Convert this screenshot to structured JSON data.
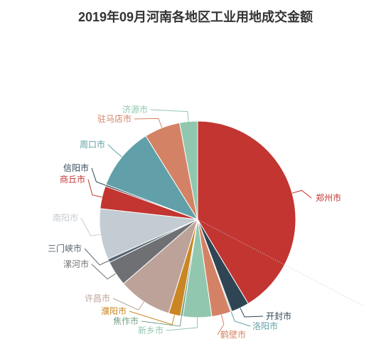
{
  "chart_data": {
    "type": "pie",
    "title": "2019年09月河南各地区工业用地成交金额",
    "start_angle_deg": 90,
    "direction": "clockwise",
    "slices": [
      {
        "name": "郑州市",
        "value": 42.0,
        "color": "#c23531"
      },
      {
        "name": "开封市",
        "value": 3.0,
        "color": "#2f4554"
      },
      {
        "name": "洛阳市",
        "value": 0.2,
        "color": "#61a0a8"
      },
      {
        "name": "鹤壁市",
        "value": 3.2,
        "color": "#d48265"
      },
      {
        "name": "新乡市",
        "value": 4.8,
        "color": "#91c7ae"
      },
      {
        "name": "焦作市",
        "value": 0.4,
        "color": "#749f83"
      },
      {
        "name": "濮阳市",
        "value": 2.0,
        "color": "#ca8622"
      },
      {
        "name": "许昌市",
        "value": 9.0,
        "color": "#bda29a"
      },
      {
        "name": "漯河市",
        "value": 4.2,
        "color": "#6e7074"
      },
      {
        "name": "三门峡市",
        "value": 0.6,
        "color": "#546570"
      },
      {
        "name": "南阳市",
        "value": 8.5,
        "color": "#c4ccd3"
      },
      {
        "name": "商丘市",
        "value": 3.8,
        "color": "#c23531"
      },
      {
        "name": "信阳市",
        "value": 0.3,
        "color": "#2f4554"
      },
      {
        "name": "周口市",
        "value": 10.5,
        "color": "#61a0a8"
      },
      {
        "name": "驻马店市",
        "value": 6.0,
        "color": "#d48265"
      },
      {
        "name": "济源市",
        "value": 3.0,
        "color": "#91c7ae"
      }
    ]
  }
}
